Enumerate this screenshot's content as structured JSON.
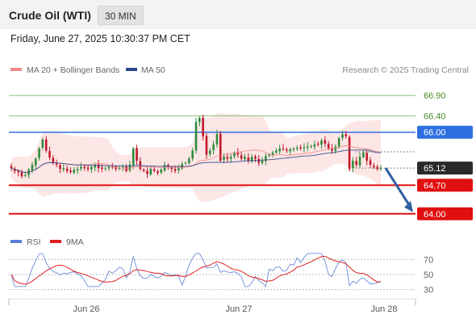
{
  "header": {
    "title": "Crude Oil (WTI)",
    "timeframe": "30 MIN",
    "datetime": "Friday, June 27, 2025 10:30:37 PM CET"
  },
  "legend": {
    "ma20_label": "MA 20 + Bollinger Bands",
    "ma50_label": "MA 50",
    "credit": "Research © 2025 Trading Central"
  },
  "rsi_legend": {
    "rsi_label": "RSI",
    "ma_label": "9MA"
  },
  "colors": {
    "ma20": "#f08a8a",
    "ma50": "#2a4a8a",
    "up": "#2e8b3a",
    "down": "#c0182a",
    "band": "#fde3e3",
    "resistance": "#2e6fe0",
    "support": "#e01010",
    "target_line": "#90c27a",
    "arrow": "#2f5f9e",
    "rsi": "#5b7fd6",
    "rsi_ma": "#e02020"
  },
  "chart_data": {
    "type": "candlestick",
    "ylim": [
      63.6,
      67.3
    ],
    "x_ticks": [
      "Jun 26",
      "Jun 27",
      "Jun 28"
    ],
    "levels": [
      {
        "value": 66.9,
        "label": "66.90",
        "kind": "target"
      },
      {
        "value": 66.4,
        "label": "66.40",
        "kind": "target"
      },
      {
        "value": 66.0,
        "label": "66.00",
        "kind": "resistance"
      },
      {
        "value": 65.12,
        "label": "65.12",
        "kind": "last"
      },
      {
        "value": 64.7,
        "label": "64.70",
        "kind": "support"
      },
      {
        "value": 64.0,
        "label": "64.00",
        "kind": "support"
      }
    ],
    "forecast": {
      "from": 65.12,
      "to": 64.0
    },
    "close_series": [
      65.12,
      65.05,
      65.02,
      64.92,
      64.95,
      65.08,
      65.2,
      65.35,
      65.6,
      65.82,
      65.55,
      65.38,
      65.25,
      65.2,
      65.1,
      65.12,
      65.05,
      65.02,
      65.08,
      65.1,
      65.15,
      65.12,
      65.1,
      65.15,
      65.2,
      65.12,
      65.1,
      65.12,
      65.15,
      65.14,
      65.1,
      65.12,
      65.15,
      65.05,
      65.2,
      65.6,
      65.3,
      65.1,
      65.05,
      64.98,
      65.1,
      65.05,
      65.0,
      65.08,
      65.2,
      65.15,
      65.1,
      65.05,
      65.12,
      65.22,
      65.25,
      65.35,
      65.55,
      66.25,
      66.35,
      65.9,
      65.45,
      65.55,
      65.7,
      65.95,
      65.3,
      65.4,
      65.35,
      65.4,
      65.5,
      65.45,
      65.35,
      65.4,
      65.3,
      65.4,
      65.35,
      65.25,
      65.3,
      65.42,
      65.45,
      65.5,
      65.55,
      65.6,
      65.58,
      65.55,
      65.58,
      65.6,
      65.62,
      65.6,
      65.63,
      65.65,
      65.66,
      65.7,
      65.7,
      65.8,
      65.72,
      65.6,
      65.55,
      65.65,
      65.85,
      65.95,
      65.9,
      65.1,
      65.3,
      65.2,
      65.4,
      65.5,
      65.3,
      65.2,
      65.15,
      65.1,
      65.12
    ],
    "rsi": {
      "levels": [
        70,
        50,
        30
      ],
      "ylim": [
        20,
        80
      ]
    }
  }
}
